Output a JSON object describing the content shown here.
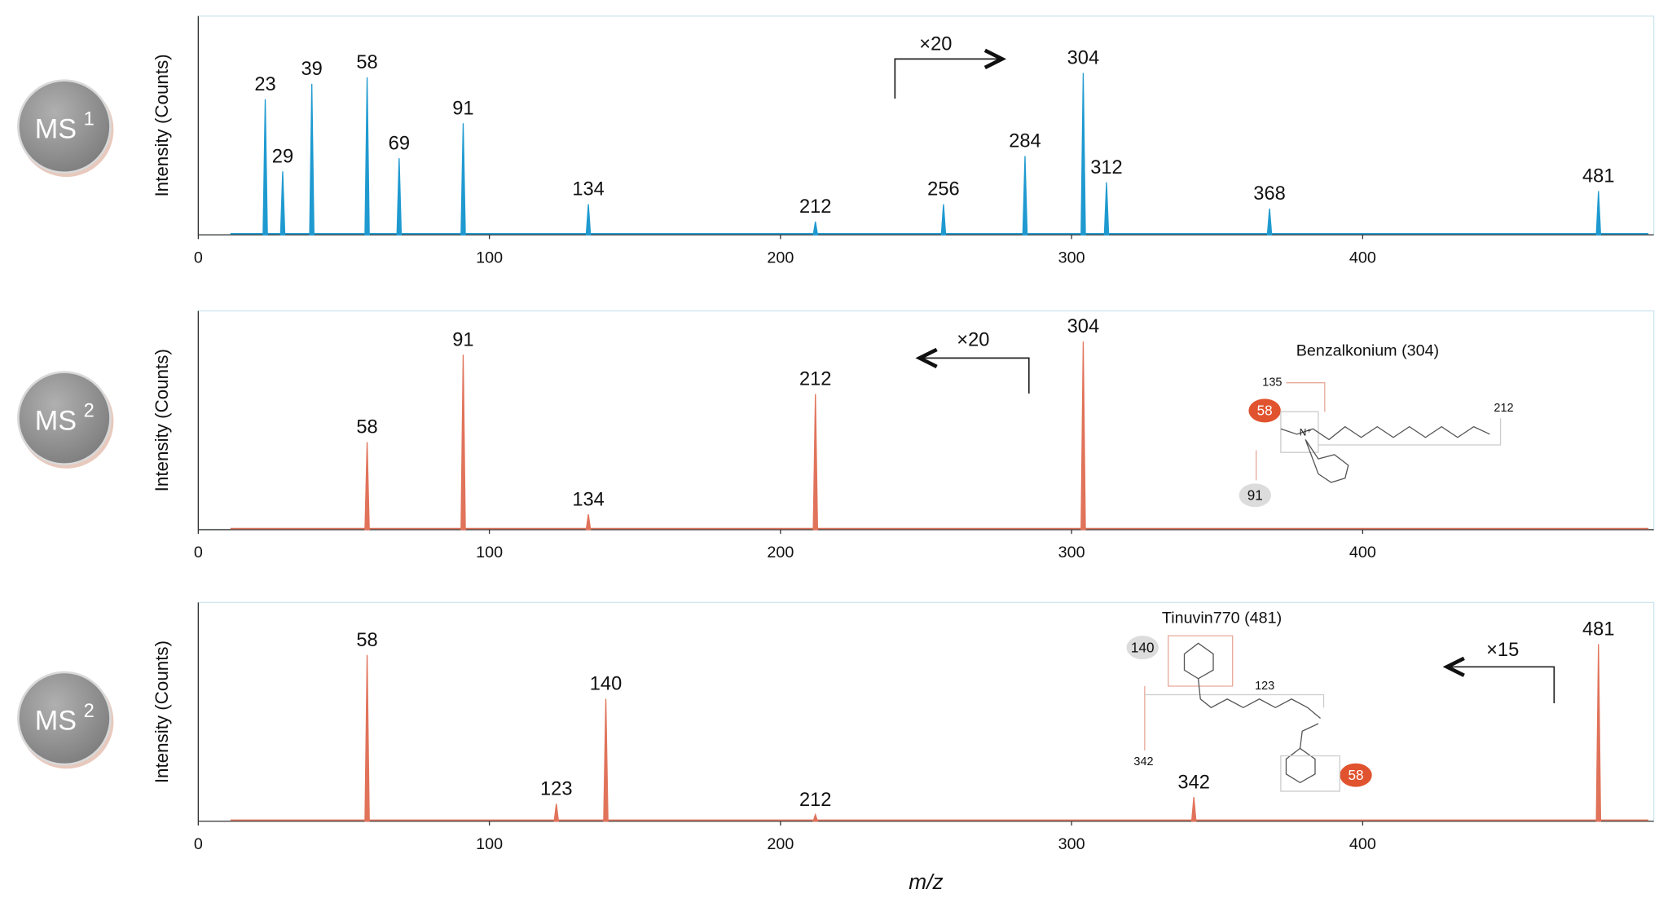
{
  "chart_data": [
    {
      "type": "stem",
      "badge": "MS",
      "badge_sup": "1",
      "y_label": "Intensity (Counts)",
      "color": "#1f9ad0",
      "x": [
        23,
        29,
        39,
        58,
        69,
        91,
        134,
        212,
        256,
        284,
        304,
        312,
        368,
        481
      ],
      "values": [
        62,
        29,
        69,
        72,
        35,
        51,
        14,
        6,
        14,
        36,
        74,
        24,
        12,
        20
      ],
      "xlim": [
        0,
        500
      ],
      "xticks": [
        0,
        100,
        200,
        300,
        400
      ],
      "ylim": [
        0,
        100
      ],
      "multiplier": "×20",
      "multiplier_direction": "right"
    },
    {
      "type": "stem",
      "badge": "MS",
      "badge_sup": "2",
      "y_label": "Intensity (Counts)",
      "color": "#e0735a",
      "x": [
        58,
        91,
        134,
        212,
        304
      ],
      "values": [
        40,
        80,
        7,
        62,
        86
      ],
      "xlim": [
        0,
        500
      ],
      "xticks": [
        0,
        100,
        200,
        300,
        400
      ],
      "ylim": [
        0,
        100
      ],
      "multiplier": "×20",
      "multiplier_direction": "left",
      "structure": {
        "name": "Benzalkonium (304)",
        "fragments": [
          135,
          58,
          212,
          91
        ]
      }
    },
    {
      "type": "stem",
      "badge": "MS",
      "badge_sup": "2",
      "y_label": "Intensity (Counts)",
      "x_label": "m/z",
      "color": "#e0735a",
      "x": [
        58,
        123,
        140,
        212,
        342,
        481
      ],
      "values": [
        76,
        8,
        56,
        3,
        11,
        81
      ],
      "xlim": [
        0,
        500
      ],
      "xticks": [
        0,
        100,
        200,
        300,
        400
      ],
      "ylim": [
        0,
        100
      ],
      "multiplier": "×15",
      "multiplier_direction": "left",
      "structure": {
        "name": "Tinuvin770 (481)",
        "fragments": [
          140,
          123,
          342,
          58
        ]
      }
    }
  ]
}
